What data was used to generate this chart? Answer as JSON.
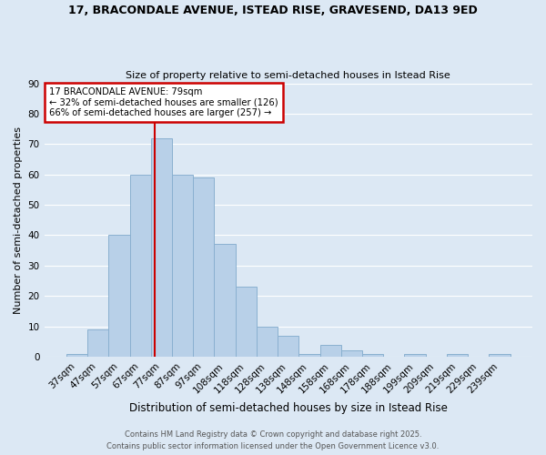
{
  "title1": "17, BRACONDALE AVENUE, ISTEAD RISE, GRAVESEND, DA13 9ED",
  "title2": "Size of property relative to semi-detached houses in Istead Rise",
  "xlabel": "Distribution of semi-detached houses by size in Istead Rise",
  "ylabel": "Number of semi-detached properties",
  "categories": [
    "37sqm",
    "47sqm",
    "57sqm",
    "67sqm",
    "77sqm",
    "87sqm",
    "97sqm",
    "108sqm",
    "118sqm",
    "128sqm",
    "138sqm",
    "148sqm",
    "158sqm",
    "168sqm",
    "178sqm",
    "188sqm",
    "199sqm",
    "209sqm",
    "219sqm",
    "229sqm",
    "239sqm"
  ],
  "values": [
    1,
    9,
    40,
    60,
    72,
    60,
    59,
    37,
    23,
    10,
    7,
    1,
    4,
    2,
    1,
    0,
    1,
    0,
    1,
    0,
    1
  ],
  "bar_color": "#b8d0e8",
  "bar_edgecolor": "#8ab0d0",
  "annotation_text": "17 BRACONDALE AVENUE: 79sqm\n← 32% of semi-detached houses are smaller (126)\n66% of semi-detached houses are larger (257) →",
  "ylim": [
    0,
    90
  ],
  "yticks": [
    0,
    10,
    20,
    30,
    40,
    50,
    60,
    70,
    80,
    90
  ],
  "footer1": "Contains HM Land Registry data © Crown copyright and database right 2025.",
  "footer2": "Contains public sector information licensed under the Open Government Licence v3.0.",
  "background_color": "#dce8f4",
  "grid_color": "#ffffff",
  "red_line_color": "#cc0000",
  "annotation_box_color": "#ffffff",
  "annotation_border_color": "#cc0000"
}
